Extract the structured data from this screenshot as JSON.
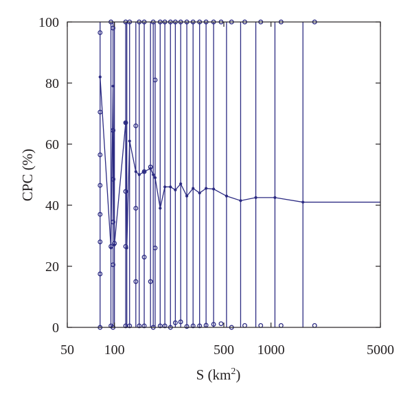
{
  "chart_data": {
    "type": "line",
    "xlabel": "S (km",
    "xlabel_sup": "2",
    "xlabel_close": ")",
    "ylabel": "CPC (%)",
    "x_scale": "log",
    "xlim": [
      50,
      5000
    ],
    "ylim": [
      0,
      100
    ],
    "x_ticks": [
      50,
      100,
      500,
      1000,
      5000
    ],
    "x_tick_labels": [
      "50",
      "100",
      "500",
      "1000",
      "5000"
    ],
    "y_ticks": [
      0,
      20,
      40,
      60,
      80,
      100
    ],
    "y_tick_labels": [
      "0",
      "20",
      "40",
      "60",
      "80",
      "100"
    ],
    "grid": false,
    "color": "#2b2a82",
    "series": [
      {
        "values_xy": [
          [
            81,
            82
          ],
          [
            95,
            26
          ],
          [
            98,
            79
          ],
          [
            100,
            27
          ],
          [
            118,
            67
          ],
          [
            120,
            26
          ],
          [
            125,
            61
          ],
          [
            137,
            51
          ],
          [
            144,
            50
          ],
          [
            155,
            51
          ],
          [
            170,
            52
          ],
          [
            177,
            50
          ],
          [
            182,
            49
          ],
          [
            196,
            39
          ],
          [
            210,
            46
          ],
          [
            228,
            46
          ],
          [
            245,
            45
          ],
          [
            265,
            47
          ],
          [
            290,
            43
          ],
          [
            318,
            45.5
          ],
          [
            350,
            44
          ],
          [
            385,
            45.5
          ],
          [
            430,
            45.3
          ],
          [
            520,
            43
          ],
          [
            640,
            41.5
          ],
          [
            800,
            42.5
          ],
          [
            1060,
            42.5
          ],
          [
            1600,
            41
          ],
          [
            5000,
            41
          ]
        ]
      }
    ],
    "vertical_lines_x": [
      81,
      95,
      98,
      100,
      118,
      120,
      125,
      137,
      144,
      155,
      170,
      177,
      182,
      196,
      210,
      228,
      245,
      265,
      290,
      318,
      350,
      385,
      430,
      520,
      640,
      800,
      1060,
      1600
    ],
    "open_markers": [
      [
        81,
        96.5
      ],
      [
        81,
        70.5
      ],
      [
        81,
        56.5
      ],
      [
        81,
        46.5
      ],
      [
        81,
        37
      ],
      [
        81,
        28
      ],
      [
        81,
        17.5
      ],
      [
        81,
        0
      ],
      [
        95,
        100
      ],
      [
        95,
        26.5
      ],
      [
        95,
        0.5
      ],
      [
        98,
        98
      ],
      [
        98,
        64.5
      ],
      [
        98,
        48.5
      ],
      [
        98,
        34.5
      ],
      [
        98,
        20.5
      ],
      [
        98,
        0
      ],
      [
        100,
        27.5
      ],
      [
        118,
        100
      ],
      [
        118,
        67
      ],
      [
        118,
        44.5
      ],
      [
        118,
        26.5
      ],
      [
        118,
        0.5
      ],
      [
        125,
        100
      ],
      [
        125,
        0.5
      ],
      [
        137,
        66
      ],
      [
        137,
        39
      ],
      [
        137,
        15
      ],
      [
        144,
        100
      ],
      [
        144,
        0.5
      ],
      [
        155,
        100
      ],
      [
        155,
        51
      ],
      [
        155,
        23
      ],
      [
        155,
        0.5
      ],
      [
        170,
        52.5
      ],
      [
        170,
        15
      ],
      [
        177,
        100
      ],
      [
        177,
        0
      ],
      [
        182,
        81
      ],
      [
        182,
        26
      ],
      [
        196,
        100
      ],
      [
        196,
        0.5
      ],
      [
        210,
        100
      ],
      [
        210,
        0.5
      ],
      [
        228,
        100
      ],
      [
        228,
        0
      ],
      [
        245,
        100
      ],
      [
        245,
        1.5
      ],
      [
        265,
        100
      ],
      [
        265,
        1.8
      ],
      [
        290,
        100
      ],
      [
        290,
        0.3
      ],
      [
        318,
        100
      ],
      [
        318,
        0.5
      ],
      [
        350,
        100
      ],
      [
        350,
        0.5
      ],
      [
        385,
        100
      ],
      [
        385,
        0.7
      ],
      [
        430,
        100
      ],
      [
        430,
        1
      ],
      [
        480,
        100
      ],
      [
        480,
        1.2
      ],
      [
        560,
        100
      ],
      [
        560,
        0
      ],
      [
        680,
        100
      ],
      [
        680,
        0.6
      ],
      [
        860,
        100
      ],
      [
        860,
        0.6
      ],
      [
        1160,
        100
      ],
      [
        1160,
        0.6
      ],
      [
        1900,
        100
      ],
      [
        1900,
        0.6
      ]
    ]
  }
}
